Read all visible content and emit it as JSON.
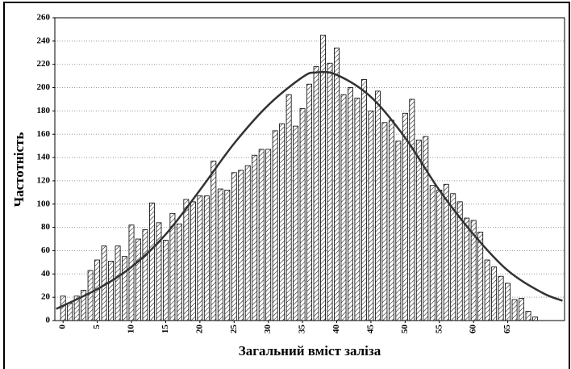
{
  "chart_data": {
    "type": "histogram",
    "xlabel": "Загальний вміст заліза",
    "ylabel": "Частотність",
    "bins": [
      -0.5,
      0.5,
      1.5,
      2.5,
      3.5,
      4.5,
      5.5,
      6.5,
      7.5,
      8.5,
      9.5,
      10.5,
      11.5,
      12.5,
      13.5,
      14.5,
      15.5,
      16.5,
      17.5,
      18.5,
      19.5,
      20.5,
      21.5,
      22.5,
      23.5,
      24.5,
      25.5,
      26.5,
      27.5,
      28.5,
      29.5,
      30.5,
      31.5,
      32.5,
      33.5,
      34.5,
      35.5,
      36.5,
      37.5,
      38.5,
      39.5,
      40.5,
      41.5,
      42.5,
      43.5,
      44.5,
      45.5,
      46.5,
      47.5,
      48.5,
      49.5,
      50.5,
      51.5,
      52.5,
      53.5,
      54.5,
      55.5,
      56.5,
      57.5,
      58.5,
      59.5,
      60.5,
      61.5,
      62.5,
      63.5,
      64.5,
      65.5,
      66.5,
      67.5,
      68.5,
      69.5
    ],
    "values": [
      21,
      15,
      21,
      26,
      43,
      52,
      64,
      51,
      64,
      55,
      82,
      70,
      78,
      101,
      84,
      69,
      92,
      83,
      104,
      102,
      107,
      107,
      137,
      113,
      112,
      127,
      129,
      133,
      142,
      147,
      147,
      163,
      169,
      194,
      167,
      182,
      203,
      218,
      245,
      221,
      234,
      194,
      200,
      191,
      207,
      180,
      197,
      170,
      172,
      154,
      178,
      190,
      155,
      158,
      116,
      112,
      117,
      109,
      102,
      88,
      86,
      76,
      52,
      46,
      38,
      32,
      18,
      19,
      8,
      3
    ],
    "color": "#000000",
    "curve": {
      "color": "#333333",
      "x": [
        -1,
        5,
        10,
        15,
        20,
        25,
        30,
        35,
        37,
        40,
        45,
        50,
        55,
        60,
        65,
        70,
        73
      ],
      "values": [
        10,
        27,
        46,
        74,
        112,
        152,
        185,
        209,
        213,
        211,
        192,
        157,
        112,
        74,
        43,
        24,
        17
      ]
    },
    "xlim": [
      -1.2,
      73.3
    ],
    "ylim": [
      0,
      260
    ],
    "xticks": [
      0,
      5,
      10,
      15,
      20,
      25,
      30,
      35,
      40,
      45,
      50,
      55,
      60,
      65
    ],
    "yticks": [
      0,
      20,
      40,
      60,
      80,
      100,
      120,
      140,
      160,
      180,
      200,
      220,
      240,
      260
    ],
    "grid": true
  }
}
